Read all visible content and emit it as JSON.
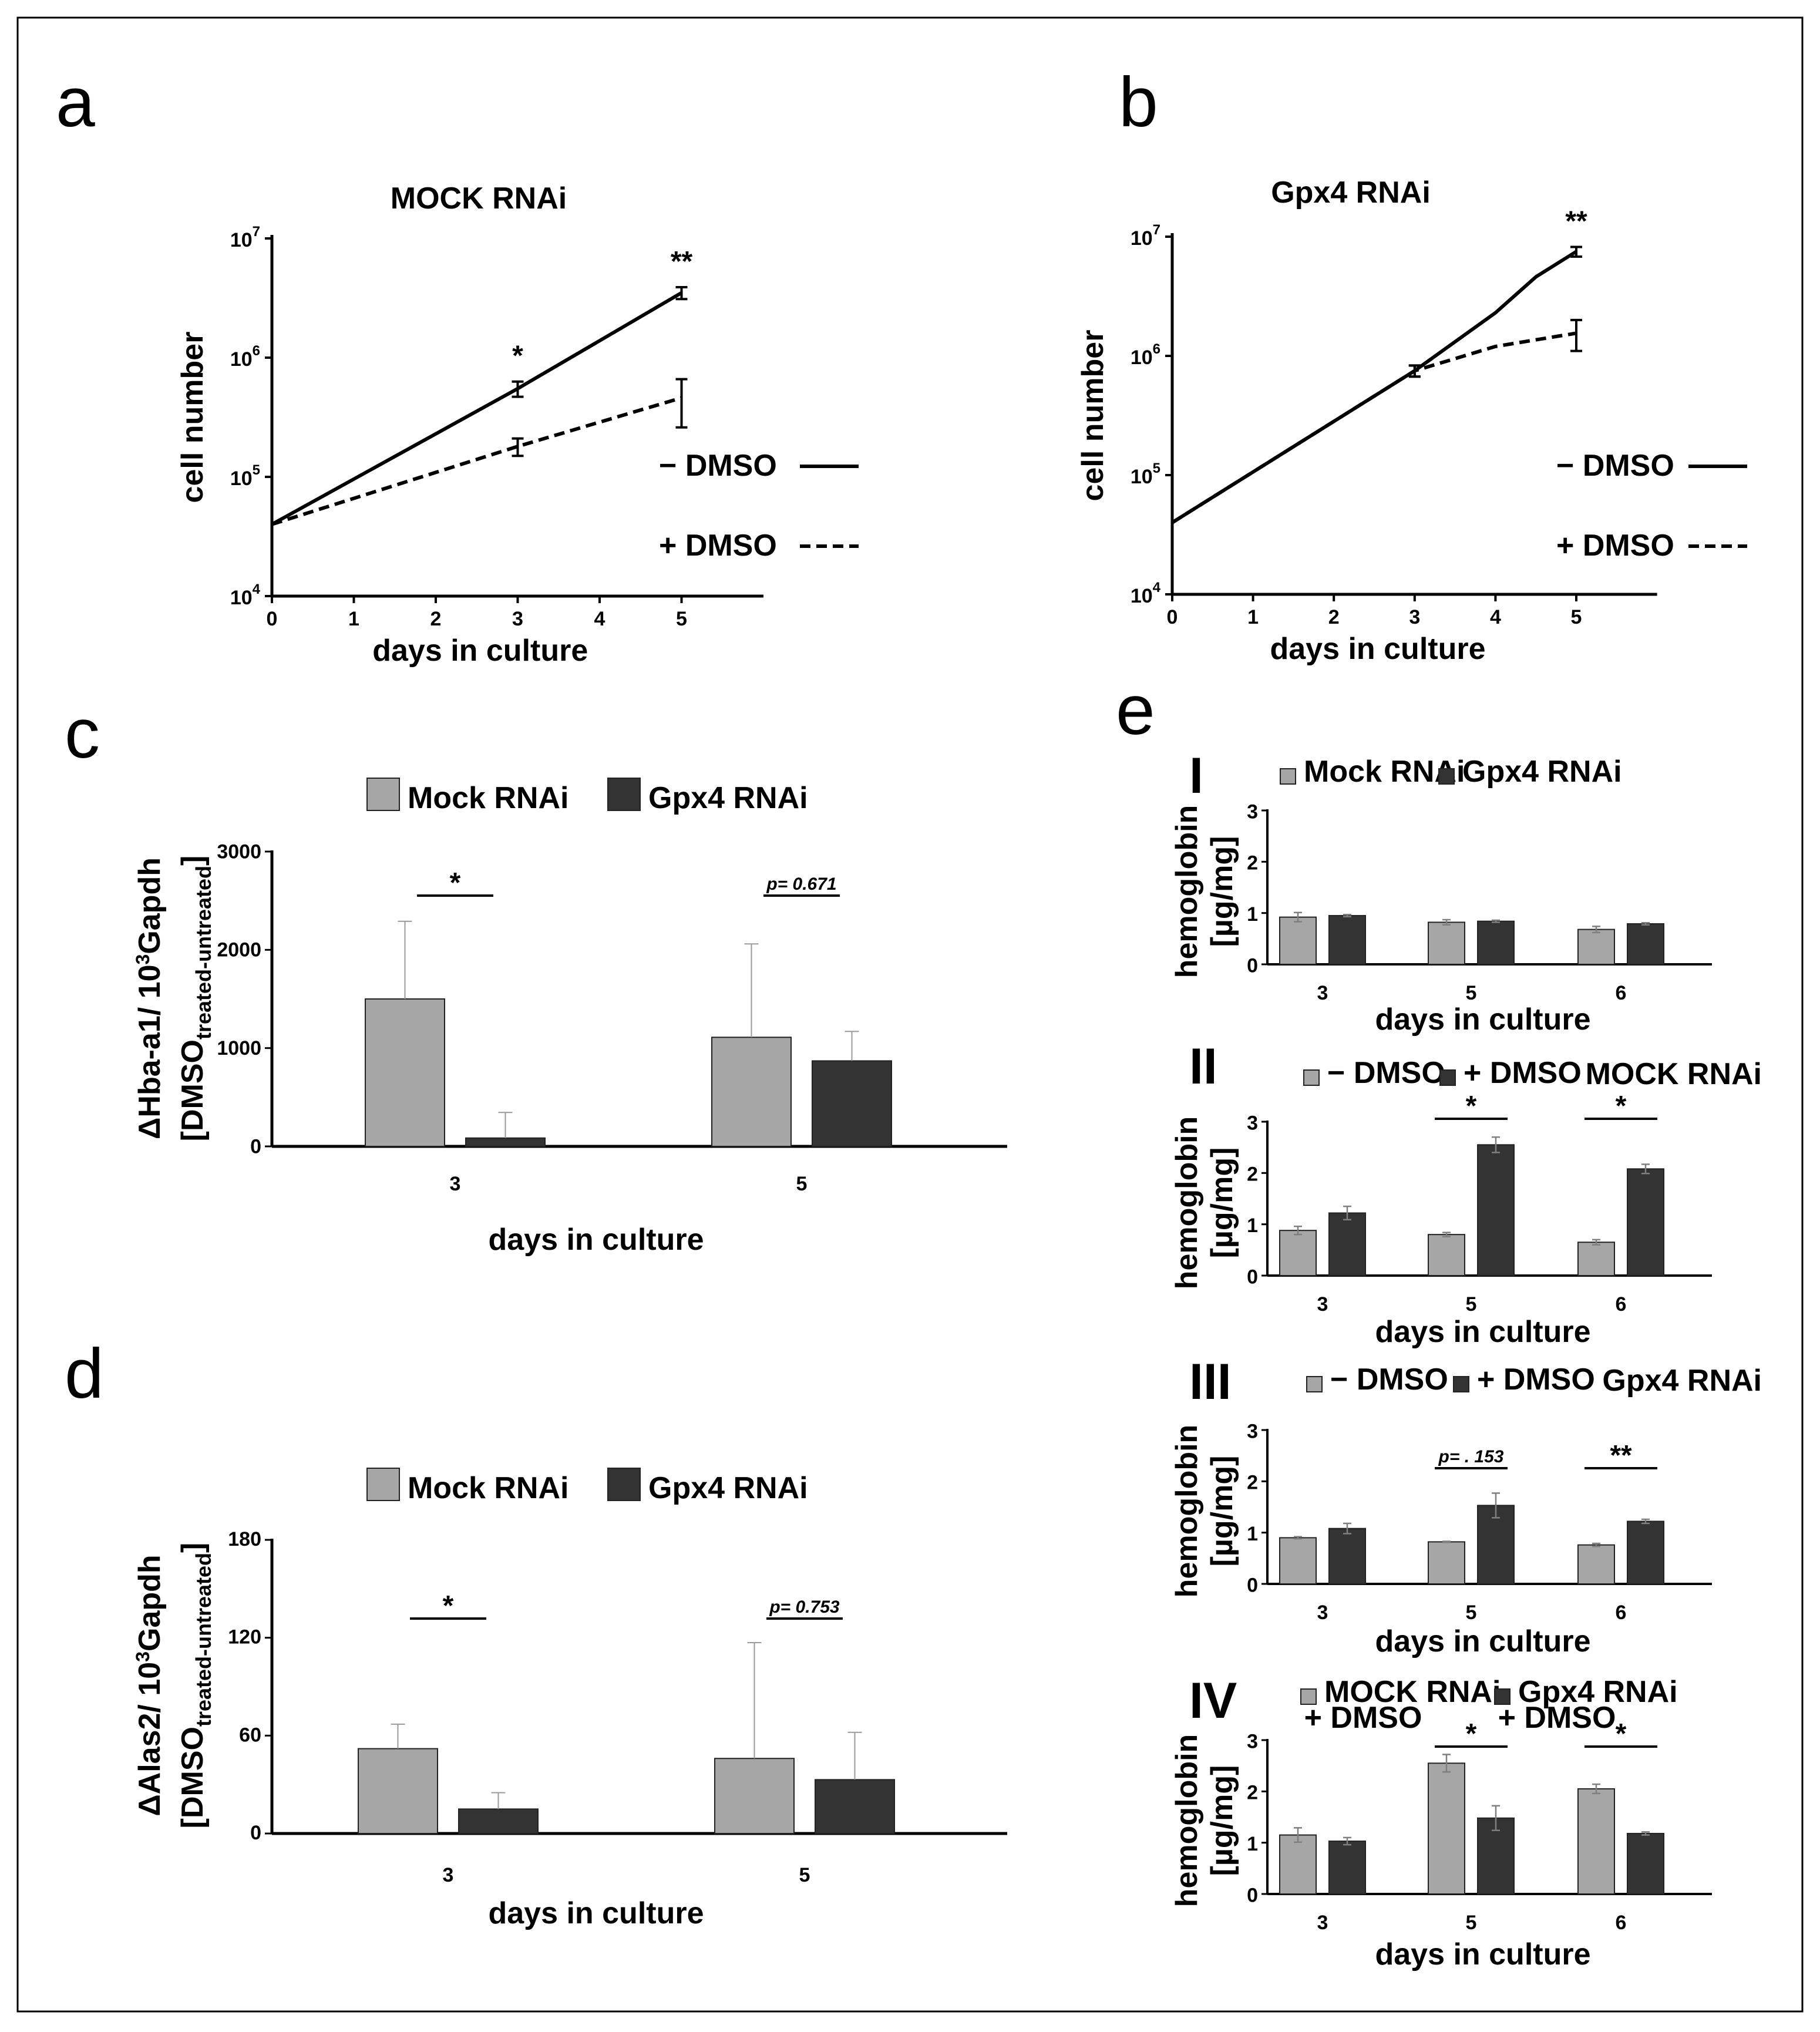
{
  "chart_data": [
    {
      "id": "a",
      "panel_letter": "a",
      "type": "line",
      "title": "MOCK RNAi",
      "xlabel": "days in culture",
      "ylabel": "cell number",
      "yscale": "log",
      "xlim": [
        0,
        6
      ],
      "ylim": [
        10000,
        10000000
      ],
      "x_ticks": [
        "0",
        "1",
        "2",
        "3",
        "4",
        "5"
      ],
      "y_ticks": [
        {
          "base": "10",
          "exp": "4"
        },
        {
          "base": "10",
          "exp": "5"
        },
        {
          "base": "10",
          "exp": "6"
        },
        {
          "base": "10",
          "exp": "7"
        }
      ],
      "series": [
        {
          "name": "− DMSO",
          "style": "solid",
          "x": [
            0,
            3,
            5
          ],
          "y": [
            40000,
            550000,
            3500000
          ],
          "err": [
            0,
            80000,
            400000
          ]
        },
        {
          "name": "+ DMSO",
          "style": "dashed",
          "x": [
            0,
            3,
            5
          ],
          "y": [
            40000,
            180000,
            460000
          ],
          "err": [
            0,
            30000,
            200000
          ]
        }
      ],
      "significance": [
        {
          "x": 3,
          "text": "*"
        },
        {
          "x": 5,
          "text": "**"
        }
      ],
      "legend_position": "right"
    },
    {
      "id": "b",
      "panel_letter": "b",
      "type": "line",
      "title": "Gpx4 RNAi",
      "xlabel": "days in culture",
      "ylabel": "cell number",
      "yscale": "log",
      "xlim": [
        0,
        6
      ],
      "ylim": [
        10000,
        10000000
      ],
      "x_ticks": [
        "0",
        "1",
        "2",
        "3",
        "4",
        "5"
      ],
      "y_ticks": [
        {
          "base": "10",
          "exp": "4"
        },
        {
          "base": "10",
          "exp": "5"
        },
        {
          "base": "10",
          "exp": "6"
        },
        {
          "base": "10",
          "exp": "7"
        }
      ],
      "series": [
        {
          "name": "− DMSO",
          "style": "solid",
          "x": [
            0,
            3,
            4,
            4.5,
            5
          ],
          "y": [
            40000,
            750000,
            2300000,
            4600000,
            7500000
          ],
          "err": [
            0,
            80000,
            0,
            0,
            700000
          ]
        },
        {
          "name": "+ DMSO",
          "style": "dashed",
          "x": [
            0,
            3,
            4,
            5
          ],
          "y": [
            40000,
            750000,
            1200000,
            1550000
          ],
          "err": [
            0,
            80000,
            0,
            450000
          ]
        }
      ],
      "significance": [
        {
          "x": 5,
          "text": "**"
        }
      ],
      "legend_position": "right"
    },
    {
      "id": "c",
      "panel_letter": "c",
      "type": "bar",
      "ylabel_main": "ΔHba-a1/ 10",
      "ylabel_sup": "3",
      "ylabel_tail": "Gapdh",
      "ylabel2_main": "[DMSO",
      "ylabel2_sub": "treated-untreated",
      "ylabel2_tail": "]",
      "xlabel": "days in culture",
      "categories": [
        "3",
        "5"
      ],
      "ylim": [
        0,
        3000
      ],
      "y_ticks": [
        "0",
        "1000",
        "2000",
        "3000"
      ],
      "series": [
        {
          "name": "Mock RNAi",
          "color": "#a6a6a6",
          "values": [
            1500,
            1110
          ],
          "err": [
            790,
            950
          ]
        },
        {
          "name": "Gpx4 RNAi",
          "color": "#333333",
          "values": [
            85,
            870
          ],
          "err": [
            260,
            300
          ]
        }
      ],
      "significance": [
        {
          "category": 0,
          "text": "*",
          "italic": false
        },
        {
          "category": 1,
          "text": "p= 0.671",
          "italic": true
        }
      ],
      "legend_position": "top"
    },
    {
      "id": "d",
      "panel_letter": "d",
      "type": "bar",
      "ylabel_main": "ΔAlas2/ 10",
      "ylabel_sup": "3",
      "ylabel_tail": "Gapdh",
      "ylabel2_main": "[DMSO",
      "ylabel2_sub": "treated-untreated",
      "ylabel2_tail": "]",
      "xlabel": "days in culture",
      "categories": [
        "3",
        "5"
      ],
      "ylim": [
        0,
        180
      ],
      "y_ticks": [
        "0",
        "60",
        "120",
        "180"
      ],
      "series": [
        {
          "name": "Mock RNAi",
          "color": "#a6a6a6",
          "values": [
            52,
            46
          ],
          "err": [
            15,
            71
          ]
        },
        {
          "name": "Gpx4 RNAi",
          "color": "#333333",
          "values": [
            15,
            33
          ],
          "err": [
            10,
            29
          ]
        }
      ],
      "significance": [
        {
          "category": 0,
          "text": "*",
          "italic": false
        },
        {
          "category": 1,
          "text": "p= 0.753",
          "italic": true
        }
      ],
      "legend_position": "top"
    },
    {
      "id": "eI",
      "panel_letter": "e",
      "roman": "I",
      "type": "bar",
      "ylabel": "hemoglobin",
      "ylabel2": "[µg/mg]",
      "xlabel": "days in culture",
      "categories": [
        "3",
        "5",
        "6"
      ],
      "ylim": [
        0,
        3
      ],
      "y_ticks": [
        "0",
        "1",
        "2",
        "3"
      ],
      "series": [
        {
          "name": "Mock RNAi",
          "color": "#a6a6a6",
          "values": [
            0.92,
            0.82,
            0.68
          ],
          "err": [
            0.09,
            0.05,
            0.06
          ]
        },
        {
          "name": "Gpx4 RNAi",
          "color": "#333333",
          "values": [
            0.95,
            0.84,
            0.79
          ],
          "err": [
            0.02,
            0.02,
            0.02
          ]
        }
      ],
      "group_note": "",
      "significance": [],
      "legend_position": "top"
    },
    {
      "id": "eII",
      "roman": "II",
      "type": "bar",
      "ylabel": "hemoglobin",
      "ylabel2": "[µg/mg]",
      "xlabel": "days in culture",
      "categories": [
        "3",
        "5",
        "6"
      ],
      "ylim": [
        0,
        3
      ],
      "y_ticks": [
        "0",
        "1",
        "2",
        "3"
      ],
      "series": [
        {
          "name": "− DMSO",
          "color": "#a6a6a6",
          "values": [
            0.88,
            0.8,
            0.65
          ],
          "err": [
            0.08,
            0.04,
            0.05
          ]
        },
        {
          "name": "+ DMSO",
          "color": "#333333",
          "values": [
            1.22,
            2.55,
            2.08
          ],
          "err": [
            0.13,
            0.15,
            0.09
          ]
        }
      ],
      "group_note": "MOCK RNAi",
      "significance": [
        {
          "category": 1,
          "text": "*",
          "italic": false
        },
        {
          "category": 2,
          "text": "*",
          "italic": false
        }
      ],
      "legend_position": "top"
    },
    {
      "id": "eIII",
      "roman": "III",
      "type": "bar",
      "ylabel": "hemoglobin",
      "ylabel2": "[µg/mg]",
      "xlabel": "days in culture",
      "categories": [
        "3",
        "5",
        "6"
      ],
      "ylim": [
        0,
        3
      ],
      "y_ticks": [
        "0",
        "1",
        "2",
        "3"
      ],
      "series": [
        {
          "name": "− DMSO",
          "color": "#a6a6a6",
          "values": [
            0.9,
            0.82,
            0.76
          ],
          "err": [
            0.02,
            0.01,
            0.03
          ]
        },
        {
          "name": "+ DMSO",
          "color": "#333333",
          "values": [
            1.08,
            1.53,
            1.22
          ],
          "err": [
            0.1,
            0.24,
            0.04
          ]
        }
      ],
      "group_note": "Gpx4 RNAi",
      "significance": [
        {
          "category": 1,
          "text": "p= . 153",
          "italic": true
        },
        {
          "category": 2,
          "text": "**",
          "italic": false
        }
      ],
      "legend_position": "top"
    },
    {
      "id": "eIV",
      "roman": "IV",
      "type": "bar",
      "ylabel": "hemoglobin",
      "ylabel2": "[µg/mg]",
      "xlabel": "days in culture",
      "categories": [
        "3",
        "5",
        "6"
      ],
      "ylim": [
        0,
        3
      ],
      "y_ticks": [
        "0",
        "1",
        "2",
        "3"
      ],
      "series": [
        {
          "name": "MOCK RNAi",
          "name2": "+ DMSO",
          "color": "#a6a6a6",
          "values": [
            1.15,
            2.55,
            2.05
          ],
          "err": [
            0.14,
            0.17,
            0.09
          ]
        },
        {
          "name": "Gpx4 RNAi",
          "name2": "+ DMSO",
          "color": "#333333",
          "values": [
            1.03,
            1.48,
            1.18
          ],
          "err": [
            0.07,
            0.24,
            0.03
          ]
        }
      ],
      "group_note": "",
      "significance": [
        {
          "category": 1,
          "text": "*",
          "italic": false
        },
        {
          "category": 2,
          "text": "*",
          "italic": false
        }
      ],
      "legend_position": "top"
    }
  ]
}
